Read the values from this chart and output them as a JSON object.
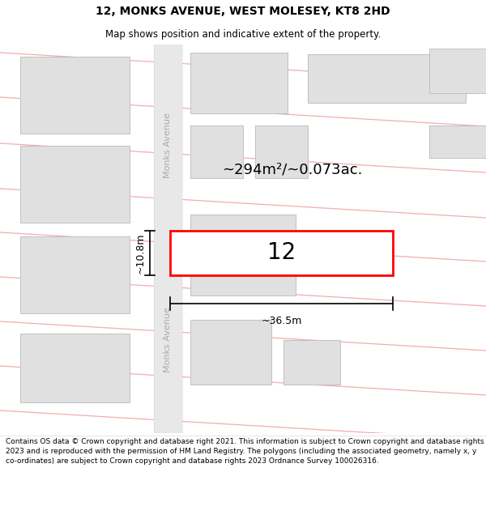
{
  "title": "12, MONKS AVENUE, WEST MOLESEY, KT8 2HD",
  "subtitle": "Map shows position and indicative extent of the property.",
  "footer": "Contains OS data © Crown copyright and database right 2021. This information is subject to Crown copyright and database rights 2023 and is reproduced with the permission of HM Land Registry. The polygons (including the associated geometry, namely x, y co-ordinates) are subject to Crown copyright and database rights 2023 Ordnance Survey 100026316.",
  "map_bg": "#f8f8f8",
  "road_fill": "#e8e8e8",
  "road_line_color": "#f08080",
  "building_fill": "#e0e0e0",
  "building_edge": "#c0c0c0",
  "highlight_fill": "#ffffff",
  "highlight_edge": "#ff0000",
  "highlight_lw": 2.0,
  "area_text": "~294m²/~0.073ac.",
  "number_text": "12",
  "width_text": "~36.5m",
  "height_text": "~10.8m",
  "title_fontsize": 10,
  "subtitle_fontsize": 8.5,
  "footer_fontsize": 6.5,
  "road_label_color": "#aaaaaa",
  "road_label_fontsize": 8
}
